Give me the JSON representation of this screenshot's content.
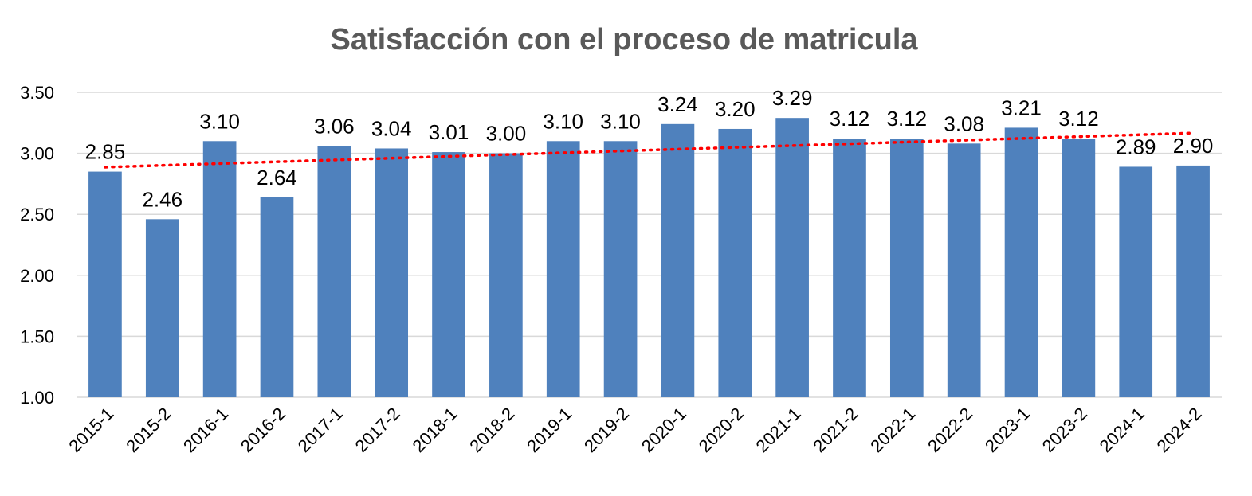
{
  "chart_data": {
    "type": "bar",
    "title": "Satisfacción con el proceso de matricula",
    "xlabel": "",
    "ylabel": "",
    "categories": [
      "2015-1",
      "2015-2",
      "2016-1",
      "2016-2",
      "2017-1",
      "2017-2",
      "2018-1",
      "2018-2",
      "2019-1",
      "2019-2",
      "2020-1",
      "2020-2",
      "2021-1",
      "2021-2",
      "2022-1",
      "2022-2",
      "2023-1",
      "2023-2",
      "2024-1",
      "2024-2"
    ],
    "values": [
      2.85,
      2.46,
      3.1,
      2.64,
      3.06,
      3.04,
      3.01,
      3.0,
      3.1,
      3.1,
      3.24,
      3.2,
      3.29,
      3.12,
      3.12,
      3.08,
      3.21,
      3.12,
      2.89,
      2.9
    ],
    "data_labels": [
      "2.85",
      "2.46",
      "3.10",
      "2.64",
      "3.06",
      "3.04",
      "3.01",
      "3.00",
      "3.10",
      "3.10",
      "3.24",
      "3.20",
      "3.29",
      "3.12",
      "3.12",
      "3.08",
      "3.21",
      "3.12",
      "2.89",
      "2.90"
    ],
    "ylim": [
      1.0,
      3.5
    ],
    "yticks": [
      "1.00",
      "1.50",
      "2.00",
      "2.50",
      "3.00",
      "3.50"
    ],
    "grid": true,
    "legend": "none",
    "trendline": {
      "type": "linear",
      "style": "dotted",
      "color": "#ff0000"
    },
    "bar_color": "#4f81bd"
  }
}
